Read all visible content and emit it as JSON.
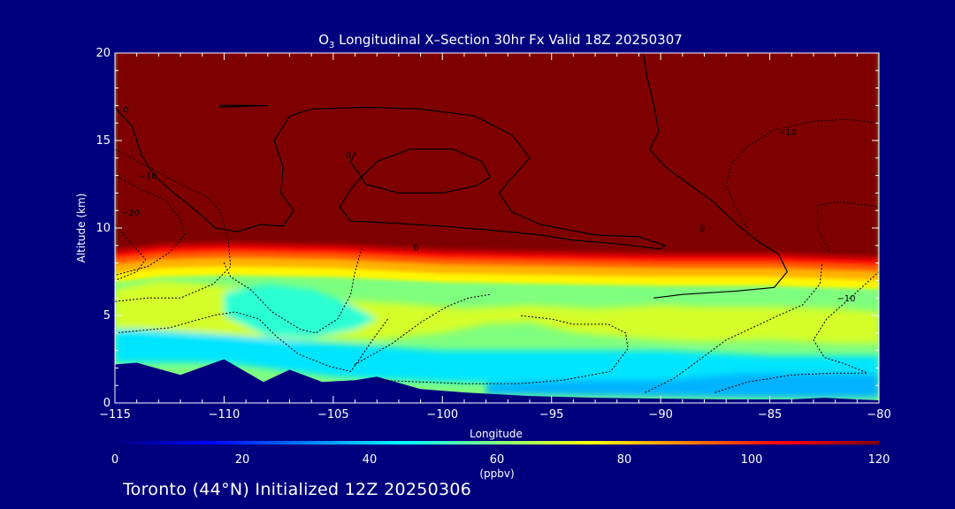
{
  "chart_data": {
    "type": "heatmap",
    "title_prefix": "O",
    "title_subscript": "3",
    "title_rest": " Longitudinal X–Section 30hr  Fx Valid 18Z 20250307",
    "xlabel": "Longitude",
    "ylabel": "Altitude (km)",
    "xlim": [
      -115,
      -80
    ],
    "ylim": [
      0,
      20
    ],
    "x_ticks": [
      -115,
      -110,
      -105,
      -100,
      -95,
      -90,
      -85,
      -80
    ],
    "x_tick_labels": [
      "−115",
      "−110",
      "−105",
      "−100",
      "−95",
      "−90",
      "−85",
      "−80"
    ],
    "y_ticks": [
      0,
      5,
      10,
      15,
      20
    ],
    "y_tick_labels": [
      "0",
      "5",
      "10",
      "15",
      "20"
    ],
    "colorbar": {
      "min": 0,
      "max": 120,
      "ticks": [
        0,
        20,
        40,
        60,
        80,
        100,
        120
      ],
      "tick_labels": [
        "0",
        "20",
        "40",
        "60",
        "80",
        "100",
        "120"
      ],
      "units": "(ppbv)",
      "colors": [
        "#00007f",
        "#0000ff",
        "#007fff",
        "#00ffff",
        "#7fff7f",
        "#ffff00",
        "#ff7f00",
        "#ff0000",
        "#7f0000"
      ]
    },
    "boundary_saturation_top": [
      [
        -115,
        8.8
      ],
      [
        -113,
        9.1
      ],
      [
        -110,
        9.2
      ],
      [
        -105,
        9.1
      ],
      [
        -100,
        8.8
      ],
      [
        -95,
        8.7
      ],
      [
        -90,
        8.6
      ],
      [
        -85,
        8.6
      ],
      [
        -80,
        8.4
      ]
    ],
    "background_level": 60,
    "regions": [
      {
        "level": 70,
        "points": [
          [
            -115,
            3.0
          ],
          [
            -112,
            3.2
          ],
          [
            -110,
            3.8
          ],
          [
            -107,
            3.6
          ],
          [
            -105,
            3.7
          ],
          [
            -103,
            3.6
          ],
          [
            -100,
            4.0
          ],
          [
            -98,
            4.5
          ],
          [
            -96,
            4.6
          ],
          [
            -94,
            4.0
          ],
          [
            -92,
            3.8
          ],
          [
            -90,
            3.6
          ],
          [
            -88,
            3.5
          ],
          [
            -85,
            3.6
          ],
          [
            -82,
            3.4
          ],
          [
            -80,
            3.4
          ],
          [
            -80,
            5.2
          ],
          [
            -82,
            5.4
          ],
          [
            -85,
            5.5
          ],
          [
            -88,
            5.5
          ],
          [
            -90,
            5.6
          ],
          [
            -93,
            5.4
          ],
          [
            -96,
            5.6
          ],
          [
            -99,
            5.4
          ],
          [
            -102,
            5.7
          ],
          [
            -105,
            5.9
          ],
          [
            -108,
            6.4
          ],
          [
            -111,
            6.8
          ],
          [
            -113,
            7.0
          ],
          [
            -115,
            6.5
          ]
        ]
      },
      {
        "level": 50,
        "points": [
          [
            -110,
            5.0
          ],
          [
            -108,
            3.8
          ],
          [
            -106,
            3.7
          ],
          [
            -104,
            4.2
          ],
          [
            -103,
            4.8
          ],
          [
            -104.5,
            5.8
          ],
          [
            -106,
            6.5
          ],
          [
            -108,
            6.8
          ],
          [
            -110,
            6.3
          ]
        ]
      },
      {
        "level": 42,
        "points": [
          [
            -114,
            4.2
          ],
          [
            -110,
            3.9
          ],
          [
            -106,
            3.5
          ],
          [
            -100,
            3.0
          ],
          [
            -95,
            3.0
          ],
          [
            -90,
            3.0
          ],
          [
            -85,
            2.7
          ],
          [
            -80,
            2.7
          ],
          [
            -80,
            1.3
          ],
          [
            -85,
            1.3
          ],
          [
            -90,
            1.2
          ],
          [
            -95,
            1.1
          ],
          [
            -100,
            1.2
          ],
          [
            -105,
            1.5
          ],
          [
            -110,
            2.3
          ],
          [
            -115,
            2.3
          ],
          [
            -115,
            4.2
          ]
        ]
      },
      {
        "level": 36,
        "points": [
          [
            -98,
            1.1
          ],
          [
            -94,
            1.3
          ],
          [
            -90,
            1.3
          ],
          [
            -86,
            1.7
          ],
          [
            -82,
            1.7
          ],
          [
            -80,
            1.6
          ],
          [
            -80,
            0.3
          ],
          [
            -86,
            0.3
          ],
          [
            -92,
            0.4
          ],
          [
            -98,
            0.5
          ]
        ]
      }
    ],
    "terrain": [
      [
        -115,
        2.2
      ],
      [
        -114,
        2.3
      ],
      [
        -112,
        1.6
      ],
      [
        -110,
        2.5
      ],
      [
        -108.2,
        1.2
      ],
      [
        -107,
        1.9
      ],
      [
        -105.5,
        1.2
      ],
      [
        -104,
        1.3
      ],
      [
        -103,
        1.5
      ],
      [
        -101,
        0.8
      ],
      [
        -99,
        0.6
      ],
      [
        -96,
        0.4
      ],
      [
        -93,
        0.3
      ],
      [
        -90,
        0.25
      ],
      [
        -87,
        0.2
      ],
      [
        -84,
        0.2
      ],
      [
        -82.5,
        0.3
      ],
      [
        -81,
        0.2
      ],
      [
        -80,
        0.15
      ]
    ],
    "contours": [
      {
        "value": 0,
        "style": "solid",
        "points": [
          [
            -115,
            16.9
          ],
          [
            -114.2,
            15.8
          ],
          [
            -113.8,
            14.2
          ],
          [
            -113.2,
            13.0
          ],
          [
            -112.2,
            11.9
          ],
          [
            -111.2,
            10.9
          ],
          [
            -110.4,
            10.0
          ],
          [
            -109.4,
            9.8
          ],
          [
            -108.3,
            10.2
          ],
          [
            -107.3,
            10.1
          ],
          [
            -106.8,
            11.0
          ],
          [
            -107.4,
            12.0
          ],
          [
            -107.3,
            13.5
          ],
          [
            -107.7,
            15.0
          ],
          [
            -107.0,
            16.4
          ],
          [
            -106,
            16.8
          ],
          [
            -103.5,
            16.9
          ],
          [
            -101,
            16.8
          ],
          [
            -98.5,
            16.4
          ],
          [
            -96.8,
            15.3
          ],
          [
            -96.0,
            14.0
          ],
          [
            -96.8,
            12.9
          ],
          [
            -97.4,
            12.0
          ],
          [
            -96.8,
            10.9
          ],
          [
            -95.5,
            10.2
          ],
          [
            -93.0,
            9.6
          ],
          [
            -91.0,
            9.5
          ],
          [
            -89.8,
            9.0
          ],
          [
            -90.0,
            8.8
          ],
          [
            -92.0,
            9.1
          ],
          [
            -94.0,
            9.3
          ],
          [
            -95.5,
            9.6
          ],
          [
            -98.0,
            9.9
          ],
          [
            -100.0,
            10.1
          ],
          [
            -102.5,
            10.3
          ],
          [
            -104.2,
            10.4
          ],
          [
            -104.7,
            11.2
          ],
          [
            -104.2,
            12.2
          ],
          [
            -103.8,
            12.8
          ],
          [
            -103.0,
            13.8
          ],
          [
            -101.5,
            14.5
          ],
          [
            -99.5,
            14.5
          ],
          [
            -98.2,
            13.8
          ],
          [
            -97.8,
            12.9
          ],
          [
            -98.5,
            12.4
          ],
          [
            -100.0,
            12.0
          ],
          [
            -102.0,
            12.0
          ],
          [
            -103.5,
            12.5
          ],
          [
            -104.2,
            13.8
          ],
          [
            -104.0,
            14.3
          ]
        ]
      },
      {
        "value": 0,
        "style": "solid",
        "points": [
          [
            -90.8,
            20.0
          ],
          [
            -90.6,
            18.5
          ],
          [
            -90.3,
            17.0
          ],
          [
            -90.1,
            15.5
          ],
          [
            -90.5,
            14.5
          ],
          [
            -89.8,
            13.5
          ],
          [
            -88.7,
            12.5
          ],
          [
            -87.6,
            11.5
          ],
          [
            -86.5,
            10.2
          ],
          [
            -85.5,
            9.2
          ],
          [
            -84.6,
            8.5
          ],
          [
            -84.2,
            7.5
          ],
          [
            -84.8,
            6.6
          ],
          [
            -86.5,
            6.4
          ],
          [
            -89.0,
            6.2
          ],
          [
            -90.3,
            6.0
          ]
        ]
      },
      {
        "value": 0,
        "style": "solid",
        "points": [
          [
            -110.2,
            17.0
          ],
          [
            -108.5,
            17.0
          ],
          [
            -110.2,
            16.9
          ],
          [
            -108.0,
            17.0
          ]
        ]
      },
      {
        "value": -10,
        "style": "dotted",
        "points": [
          [
            -115,
            14.5
          ],
          [
            -113.5,
            13.5
          ],
          [
            -112,
            12.5
          ],
          [
            -110.8,
            11.8
          ],
          [
            -110.2,
            11.0
          ],
          [
            -110.0,
            10.2
          ],
          [
            -109.8,
            9.2
          ],
          [
            -109.7,
            7.8
          ],
          [
            -110.5,
            6.8
          ],
          [
            -112.0,
            6.0
          ],
          [
            -113.5,
            6.0
          ],
          [
            -115,
            5.8
          ]
        ]
      },
      {
        "value": -10,
        "style": "dotted",
        "points": [
          [
            -115,
            13.0
          ],
          [
            -113.8,
            12.2
          ],
          [
            -112.7,
            11.6
          ],
          [
            -112.0,
            10.5
          ],
          [
            -111.8,
            9.6
          ],
          [
            -112.5,
            8.6
          ],
          [
            -113.5,
            7.8
          ],
          [
            -115,
            7.3
          ]
        ]
      },
      {
        "value": -10,
        "style": "dotted",
        "points": [
          [
            -115,
            10.2
          ],
          [
            -114.3,
            9.2
          ],
          [
            -113.6,
            8.2
          ],
          [
            -114.0,
            7.5
          ],
          [
            -115,
            7.0
          ]
        ]
      },
      {
        "value": -10,
        "style": "dotted",
        "points": [
          [
            -110.0,
            8.0
          ],
          [
            -109.7,
            7.2
          ],
          [
            -108.8,
            6.5
          ],
          [
            -107.8,
            5.2
          ],
          [
            -106.5,
            4.2
          ],
          [
            -105.8,
            4.0
          ],
          [
            -104.8,
            4.8
          ],
          [
            -104.2,
            6.2
          ],
          [
            -104.0,
            7.5
          ],
          [
            -103.7,
            8.8
          ]
        ]
      },
      {
        "value": -10,
        "style": "dotted",
        "points": [
          [
            -115,
            4.0
          ],
          [
            -112.5,
            4.3
          ],
          [
            -110.5,
            5.0
          ],
          [
            -109.5,
            5.2
          ],
          [
            -108.4,
            4.8
          ],
          [
            -107.6,
            3.8
          ],
          [
            -106.6,
            2.8
          ],
          [
            -105.2,
            2.1
          ],
          [
            -104.2,
            1.8
          ],
          [
            -103.8,
            2.5
          ],
          [
            -103.2,
            3.6
          ],
          [
            -102.5,
            4.8
          ]
        ]
      },
      {
        "value": -10,
        "style": "dotted",
        "points": [
          [
            -104.0,
            2.2
          ],
          [
            -102.3,
            3.4
          ],
          [
            -101.0,
            4.6
          ],
          [
            -99.8,
            5.5
          ],
          [
            -98.8,
            6.0
          ],
          [
            -97.8,
            6.2
          ]
        ]
      },
      {
        "value": -10,
        "style": "dotted",
        "points": [
          [
            -103.0,
            1.3
          ],
          [
            -101.0,
            1.2
          ],
          [
            -99.0,
            1.1
          ],
          [
            -96.5,
            1.1
          ],
          [
            -94.5,
            1.3
          ],
          [
            -92.3,
            1.8
          ],
          [
            -91.5,
            3.1
          ],
          [
            -91.6,
            4.0
          ],
          [
            -92.4,
            4.5
          ],
          [
            -94.0,
            4.5
          ],
          [
            -95.0,
            4.8
          ],
          [
            -96.5,
            5.0
          ]
        ]
      },
      {
        "value": -10,
        "style": "dotted",
        "points": [
          [
            -90.7,
            0.6
          ],
          [
            -89.4,
            1.4
          ],
          [
            -88.3,
            2.4
          ],
          [
            -87.0,
            3.6
          ],
          [
            -85.8,
            4.3
          ],
          [
            -84.6,
            5.0
          ],
          [
            -83.5,
            5.6
          ],
          [
            -82.7,
            6.8
          ],
          [
            -82.6,
            8.0
          ]
        ]
      },
      {
        "value": -10,
        "style": "dotted",
        "points": [
          [
            -80,
            7.5
          ],
          [
            -80.7,
            6.7
          ],
          [
            -81.5,
            5.8
          ],
          [
            -82.4,
            4.8
          ],
          [
            -83.0,
            3.6
          ],
          [
            -82.5,
            2.6
          ],
          [
            -81.5,
            2.2
          ],
          [
            -80.5,
            1.7
          ]
        ]
      },
      {
        "value": -10,
        "style": "dotted",
        "points": [
          [
            -82.3,
            8.7
          ],
          [
            -82.8,
            10.0
          ],
          [
            -82.8,
            11.3
          ],
          [
            -81.8,
            11.5
          ],
          [
            -80.5,
            11.3
          ],
          [
            -80,
            11.2
          ]
        ]
      },
      {
        "value": -10,
        "style": "dotted",
        "points": [
          [
            -80,
            16.0
          ],
          [
            -81.5,
            16.2
          ],
          [
            -83.0,
            16.1
          ],
          [
            -84.8,
            15.6
          ],
          [
            -86.0,
            14.7
          ],
          [
            -86.8,
            13.6
          ],
          [
            -87.0,
            12.4
          ],
          [
            -86.5,
            11.0
          ],
          [
            -86.0,
            10.0
          ]
        ]
      },
      {
        "value": -10,
        "style": "dotted",
        "points": [
          [
            -87.5,
            0.6
          ],
          [
            -86.0,
            1.2
          ],
          [
            -84.0,
            1.6
          ],
          [
            -82.0,
            1.7
          ],
          [
            -80.5,
            1.7
          ]
        ]
      }
    ],
    "contour_labels": [
      {
        "text": "0",
        "x": -114.5,
        "y": 16.6
      },
      {
        "text": "0",
        "x": -104.3,
        "y": 14.0
      },
      {
        "text": "0",
        "x": -101.2,
        "y": 8.7
      },
      {
        "text": "0",
        "x": -88.1,
        "y": 9.8
      },
      {
        "text": "−10",
        "x": -113.5,
        "y": 12.8
      },
      {
        "text": "−20",
        "x": -114.3,
        "y": 10.7
      },
      {
        "text": "−10",
        "x": -84.2,
        "y": 15.3
      },
      {
        "text": "−10",
        "x": -81.5,
        "y": 5.8
      }
    ]
  },
  "caption": "Toronto (44°N) Initialized 12Z 20250306"
}
